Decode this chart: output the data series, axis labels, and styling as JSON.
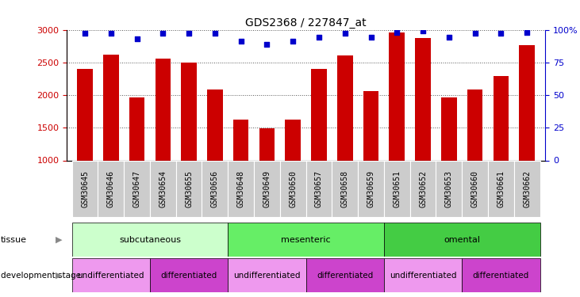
{
  "title": "GDS2368 / 227847_at",
  "samples": [
    "GSM30645",
    "GSM30646",
    "GSM30647",
    "GSM30654",
    "GSM30655",
    "GSM30656",
    "GSM30648",
    "GSM30649",
    "GSM30650",
    "GSM30657",
    "GSM30658",
    "GSM30659",
    "GSM30651",
    "GSM30652",
    "GSM30653",
    "GSM30660",
    "GSM30661",
    "GSM30662"
  ],
  "counts": [
    2400,
    2620,
    1960,
    2560,
    2500,
    2090,
    1630,
    1490,
    1630,
    2400,
    2610,
    2060,
    2960,
    2870,
    1960,
    2080,
    2290,
    2760
  ],
  "percentile": [
    97,
    97,
    93,
    97,
    97,
    97,
    91,
    89,
    91,
    94,
    97,
    94,
    98,
    99,
    94,
    97,
    97,
    98
  ],
  "bar_color": "#cc0000",
  "dot_color": "#0000cc",
  "ylim_left": [
    1000,
    3000
  ],
  "ylim_right": [
    0,
    100
  ],
  "yticks_left": [
    1000,
    1500,
    2000,
    2500,
    3000
  ],
  "yticks_right": [
    0,
    25,
    50,
    75,
    100
  ],
  "tissue_groups": [
    {
      "label": "subcutaneous",
      "start": 0,
      "end": 6,
      "color": "#ccffcc"
    },
    {
      "label": "mesenteric",
      "start": 6,
      "end": 12,
      "color": "#66ee66"
    },
    {
      "label": "omental",
      "start": 12,
      "end": 18,
      "color": "#44cc44"
    }
  ],
  "dev_groups": [
    {
      "label": "undifferentiated",
      "start": 0,
      "end": 3,
      "color": "#ee99ee"
    },
    {
      "label": "differentiated",
      "start": 3,
      "end": 6,
      "color": "#cc44cc"
    },
    {
      "label": "undifferentiated",
      "start": 6,
      "end": 9,
      "color": "#ee99ee"
    },
    {
      "label": "differentiated",
      "start": 9,
      "end": 12,
      "color": "#cc44cc"
    },
    {
      "label": "undifferentiated",
      "start": 12,
      "end": 15,
      "color": "#ee99ee"
    },
    {
      "label": "differentiated",
      "start": 15,
      "end": 18,
      "color": "#cc44cc"
    }
  ],
  "grid_color": "#555555",
  "ylabel_left_color": "#cc0000",
  "ylabel_right_color": "#0000cc",
  "sample_box_color": "#cccccc",
  "arrow_color": "#888888"
}
